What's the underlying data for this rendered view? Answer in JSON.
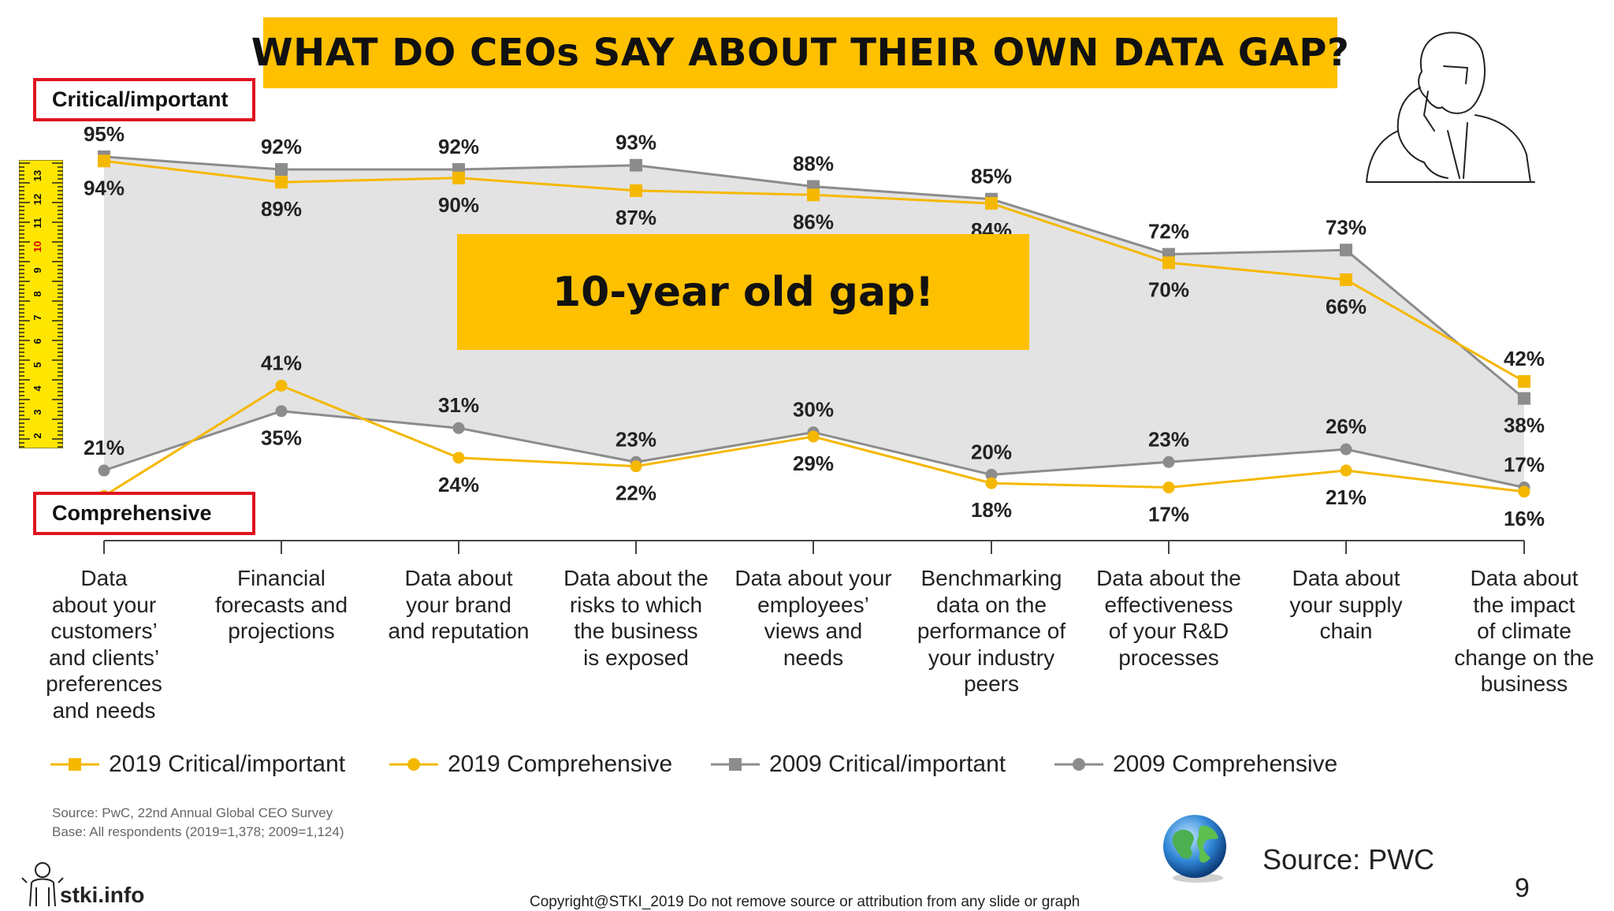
{
  "title": "WHAT DO CEOs SAY ABOUT THEIR OWN DATA GAP?",
  "labels": {
    "critical_box": "Critical/important",
    "comprehensive_box": "Comprehensive"
  },
  "gap_callout": "10-year old gap!",
  "chart_data": {
    "type": "line",
    "categories": [
      "Data about your customers’ and clients’ preferences and needs",
      "Financial forecasts and projections",
      "Data about your brand and reputation",
      "Data about the risks to which the business is exposed",
      "Data about your employees’ views and needs",
      "Benchmarking data on the performance of your industry peers",
      "Data about the effectiveness of your R&D processes",
      "Data about your supply chain",
      "Data about the impact of climate change on the business"
    ],
    "category_lines": [
      [
        "Data",
        "about your",
        "customers’",
        "and clients’",
        "preferences",
        "and needs"
      ],
      [
        "Financial",
        "forecasts and",
        "projections"
      ],
      [
        "Data about",
        "your brand",
        "and reputation"
      ],
      [
        "Data about the",
        "risks to which",
        "the business",
        "is exposed"
      ],
      [
        "Data about your",
        "employees’",
        "views and",
        "needs"
      ],
      [
        "Benchmarking",
        "data on the",
        "performance of",
        "your industry",
        "peers"
      ],
      [
        "Data about the",
        "effectiveness",
        "of your R&D",
        "processes"
      ],
      [
        "Data about",
        "your supply",
        "chain"
      ],
      [
        "Data about",
        "the impact",
        "of climate",
        "change on the",
        "business"
      ]
    ],
    "series": [
      {
        "name": "2019 Critical/important",
        "marker": "square",
        "color": "#F5B800",
        "values": [
          94,
          89,
          90,
          87,
          86,
          84,
          70,
          66,
          42
        ]
      },
      {
        "name": "2019 Comprehensive",
        "marker": "circle",
        "color": "#F5B800",
        "values": [
          15,
          41,
          24,
          22,
          29,
          18,
          17,
          21,
          16
        ]
      },
      {
        "name": "2009 Critical/important",
        "marker": "square",
        "color": "#8C8C8C",
        "values": [
          95,
          92,
          92,
          93,
          88,
          85,
          72,
          73,
          38
        ]
      },
      {
        "name": "2009 Comprehensive",
        "marker": "circle",
        "color": "#8C8C8C",
        "values": [
          21,
          35,
          31,
          23,
          30,
          20,
          23,
          26,
          17
        ]
      }
    ],
    "ylim": [
      0,
      100
    ],
    "legend_position": "bottom",
    "gap_fill_color": "#E3E3E3"
  },
  "source_note": {
    "line1": "Source: PwC, 22nd Annual Global CEO Survey",
    "line2": "Base: All respondents (2019=1,378; 2009=1,124)"
  },
  "source_pwc": "Source: PWC",
  "copyright": "Copyright@STKI_2019 Do not remove source or attribution from any slide or graph",
  "page_number": "9",
  "logo_text": "stki.info",
  "ruler_numbers": [
    "2",
    "3",
    "4",
    "5",
    "6",
    "7",
    "8",
    "9",
    "10",
    "11",
    "12",
    "13"
  ],
  "icons": [
    "man-thinking-icon",
    "globe-icon",
    "ruler-icon",
    "stki-logo-icon"
  ]
}
